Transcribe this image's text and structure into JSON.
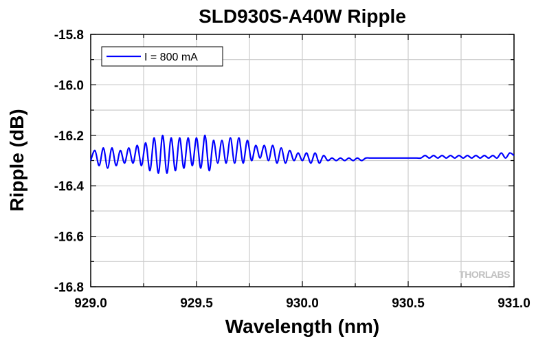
{
  "chart_data": {
    "type": "line",
    "title": "SLD930S-A40W Ripple",
    "xlabel": "Wavelength (nm)",
    "ylabel": "Ripple (dB)",
    "xlim": [
      929.0,
      931.0
    ],
    "ylim": [
      -16.8,
      -15.8
    ],
    "x_ticks": [
      "929.0",
      "929.5",
      "930.0",
      "930.5",
      "931.0"
    ],
    "y_ticks": [
      "-15.8",
      "-16.0",
      "-16.2",
      "-16.4",
      "-16.6",
      "-16.8"
    ],
    "grid": true,
    "legend_position": "top-left",
    "series": [
      {
        "name": "I = 800 mA",
        "color": "#0000ff",
        "x": [
          929.0,
          929.02,
          929.04,
          929.06,
          929.08,
          929.1,
          929.12,
          929.14,
          929.16,
          929.18,
          929.2,
          929.22,
          929.24,
          929.26,
          929.28,
          929.3,
          929.32,
          929.34,
          929.36,
          929.38,
          929.4,
          929.42,
          929.44,
          929.46,
          929.48,
          929.5,
          929.52,
          929.54,
          929.56,
          929.58,
          929.6,
          929.62,
          929.64,
          929.66,
          929.68,
          929.7,
          929.72,
          929.74,
          929.76,
          929.78,
          929.8,
          929.82,
          929.84,
          929.86,
          929.88,
          929.9,
          929.92,
          929.94,
          929.96,
          929.98,
          930.0,
          930.02,
          930.04,
          930.06,
          930.08,
          930.1,
          930.12,
          930.14,
          930.16,
          930.18,
          930.2,
          930.22,
          930.24,
          930.26,
          930.28,
          930.3,
          930.32,
          930.34,
          930.36,
          930.38,
          930.4,
          930.42,
          930.44,
          930.46,
          930.48,
          930.5,
          930.52,
          930.54,
          930.56,
          930.58,
          930.6,
          930.62,
          930.64,
          930.66,
          930.68,
          930.7,
          930.72,
          930.74,
          930.76,
          930.78,
          930.8,
          930.82,
          930.84,
          930.86,
          930.88,
          930.9,
          930.92,
          930.94,
          930.96,
          930.98,
          931.0
        ],
        "values": [
          -16.3,
          -16.26,
          -16.32,
          -16.25,
          -16.33,
          -16.25,
          -16.32,
          -16.26,
          -16.31,
          -16.25,
          -16.31,
          -16.24,
          -16.32,
          -16.23,
          -16.34,
          -16.21,
          -16.35,
          -16.2,
          -16.35,
          -16.21,
          -16.34,
          -16.21,
          -16.33,
          -16.21,
          -16.32,
          -16.21,
          -16.33,
          -16.2,
          -16.34,
          -16.22,
          -16.31,
          -16.22,
          -16.31,
          -16.21,
          -16.31,
          -16.21,
          -16.31,
          -16.22,
          -16.3,
          -16.24,
          -16.29,
          -16.24,
          -16.3,
          -16.24,
          -16.31,
          -16.25,
          -16.31,
          -16.26,
          -16.3,
          -16.27,
          -16.3,
          -16.27,
          -16.31,
          -16.27,
          -16.31,
          -16.28,
          -16.3,
          -16.29,
          -16.3,
          -16.29,
          -16.3,
          -16.29,
          -16.3,
          -16.29,
          -16.3,
          -16.29,
          -16.29,
          -16.29,
          -16.29,
          -16.29,
          -16.29,
          -16.29,
          -16.29,
          -16.29,
          -16.29,
          -16.29,
          -16.29,
          -16.29,
          -16.29,
          -16.28,
          -16.29,
          -16.28,
          -16.29,
          -16.28,
          -16.29,
          -16.28,
          -16.29,
          -16.28,
          -16.29,
          -16.28,
          -16.29,
          -16.28,
          -16.29,
          -16.28,
          -16.29,
          -16.28,
          -16.29,
          -16.27,
          -16.29,
          -16.27,
          -16.28
        ]
      }
    ]
  },
  "watermark": "THORLABS"
}
